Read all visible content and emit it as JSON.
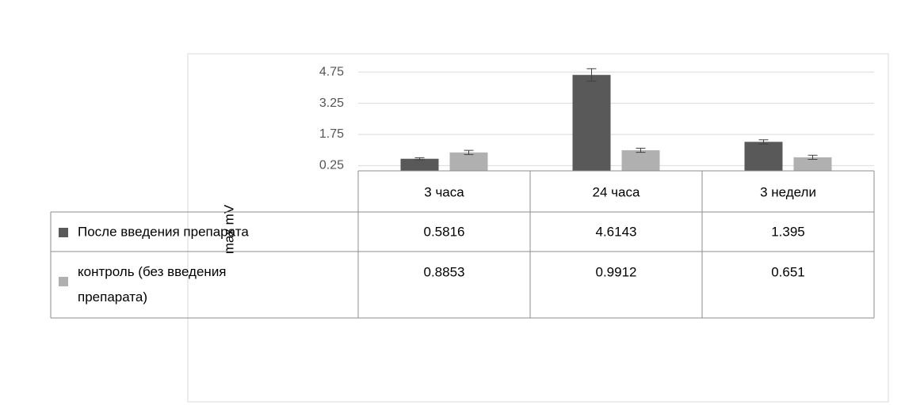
{
  "chart_data": {
    "type": "bar",
    "y_label": "max mV",
    "categories": [
      "3 часа",
      "24 часа",
      "3 недели"
    ],
    "series": [
      {
        "name": "После введения препарата",
        "color": "#595959",
        "values": [
          0.5816,
          4.6143,
          1.395
        ],
        "errors": [
          0.05,
          0.3,
          0.1
        ]
      },
      {
        "name": "контроль (без введения препарата)",
        "color": "#b0b0b0",
        "values": [
          0.8853,
          0.9912,
          0.651
        ],
        "errors": [
          0.1,
          0.1,
          0.1
        ]
      }
    ],
    "ylim": [
      0,
      5.25
    ],
    "yticks": [
      0.25,
      1.75,
      3.25,
      4.75
    ],
    "grid": true
  }
}
